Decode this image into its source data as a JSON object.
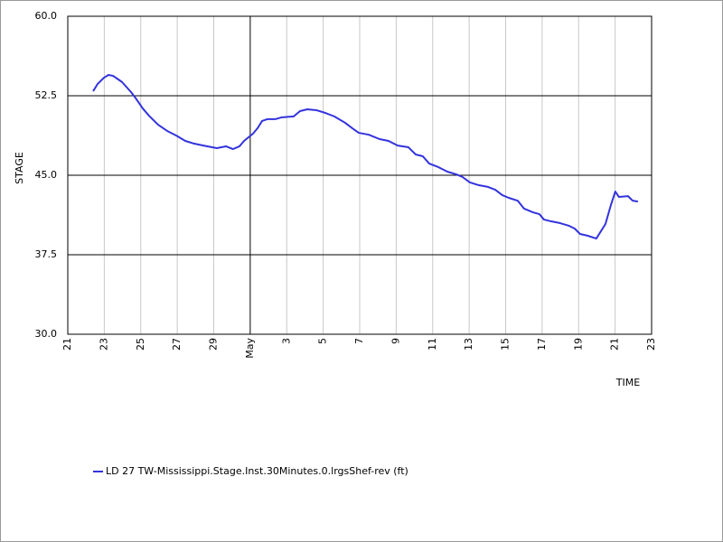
{
  "chart_data": {
    "type": "line",
    "y_label": "STAGE",
    "x_label": "TIME",
    "grid": true,
    "xlim": [
      0,
      32
    ],
    "xticks": [
      {
        "value": 0,
        "label": "21"
      },
      {
        "value": 2,
        "label": "23"
      },
      {
        "value": 4,
        "label": "25"
      },
      {
        "value": 6,
        "label": "27"
      },
      {
        "value": 8,
        "label": "29"
      },
      {
        "value": 10,
        "label": "May"
      },
      {
        "value": 12,
        "label": "3"
      },
      {
        "value": 14,
        "label": "5"
      },
      {
        "value": 16,
        "label": "7"
      },
      {
        "value": 18,
        "label": "9"
      },
      {
        "value": 20,
        "label": "11"
      },
      {
        "value": 22,
        "label": "13"
      },
      {
        "value": 24,
        "label": "15"
      },
      {
        "value": 26,
        "label": "17"
      },
      {
        "value": 28,
        "label": "19"
      },
      {
        "value": 30,
        "label": "21"
      },
      {
        "value": 32,
        "label": "23"
      }
    ],
    "ylim": [
      30,
      60
    ],
    "yticks": [
      {
        "value": 30,
        "label": "30.0"
      },
      37.5,
      {
        "value": 45,
        "label": "45.0"
      },
      52.5,
      {
        "value": 60,
        "label": "60.0"
      }
    ],
    "x": [
      1.39,
      1.63,
      1.98,
      2.23,
      2.48,
      2.97,
      3.47,
      3.71,
      4.11,
      4.46,
      4.95,
      5.45,
      5.94,
      6.44,
      6.93,
      7.43,
      8.17,
      8.67,
      9.06,
      9.41,
      9.66,
      10.15,
      10.4,
      10.65,
      10.95,
      11.39,
      11.74,
      12.38,
      12.73,
      13.13,
      13.62,
      14.12,
      14.61,
      15.21,
      15.6,
      15.95,
      16.49,
      17.09,
      17.58,
      18.08,
      18.67,
      19.07,
      19.46,
      19.81,
      20.31,
      20.8,
      21.3,
      21.64,
      22.04,
      22.53,
      23.03,
      23.43,
      23.82,
      24.17,
      24.66,
      25.01,
      25.5,
      25.85,
      26.1,
      26.5,
      26.99,
      27.49,
      27.78,
      28.08,
      28.48,
      28.97,
      29.47,
      29.77,
      30.01,
      30.21,
      30.71,
      30.96,
      31.25
    ],
    "series": [
      {
        "name": "LD 27 TW-Mississippi.Stage.Inst.30Minutes.0.lrgsShef-rev (ft)",
        "color": "#3333dd",
        "values": [
          52.93,
          53.6,
          54.2,
          54.46,
          54.38,
          53.8,
          52.84,
          52.3,
          51.3,
          50.6,
          49.77,
          49.18,
          48.75,
          48.24,
          47.98,
          47.8,
          47.56,
          47.73,
          47.47,
          47.73,
          48.24,
          48.92,
          49.43,
          50.12,
          50.3,
          50.3,
          50.47,
          50.55,
          51.05,
          51.22,
          51.14,
          50.88,
          50.55,
          49.94,
          49.43,
          49.0,
          48.83,
          48.41,
          48.24,
          47.8,
          47.64,
          46.96,
          46.79,
          46.1,
          45.77,
          45.34,
          45.08,
          44.83,
          44.32,
          44.06,
          43.9,
          43.63,
          43.12,
          42.87,
          42.6,
          41.85,
          41.5,
          41.33,
          40.82,
          40.65,
          40.48,
          40.22,
          39.97,
          39.46,
          39.3,
          39.03,
          40.4,
          42.2,
          43.46,
          42.95,
          43.03,
          42.6,
          42.52
        ]
      }
    ]
  }
}
